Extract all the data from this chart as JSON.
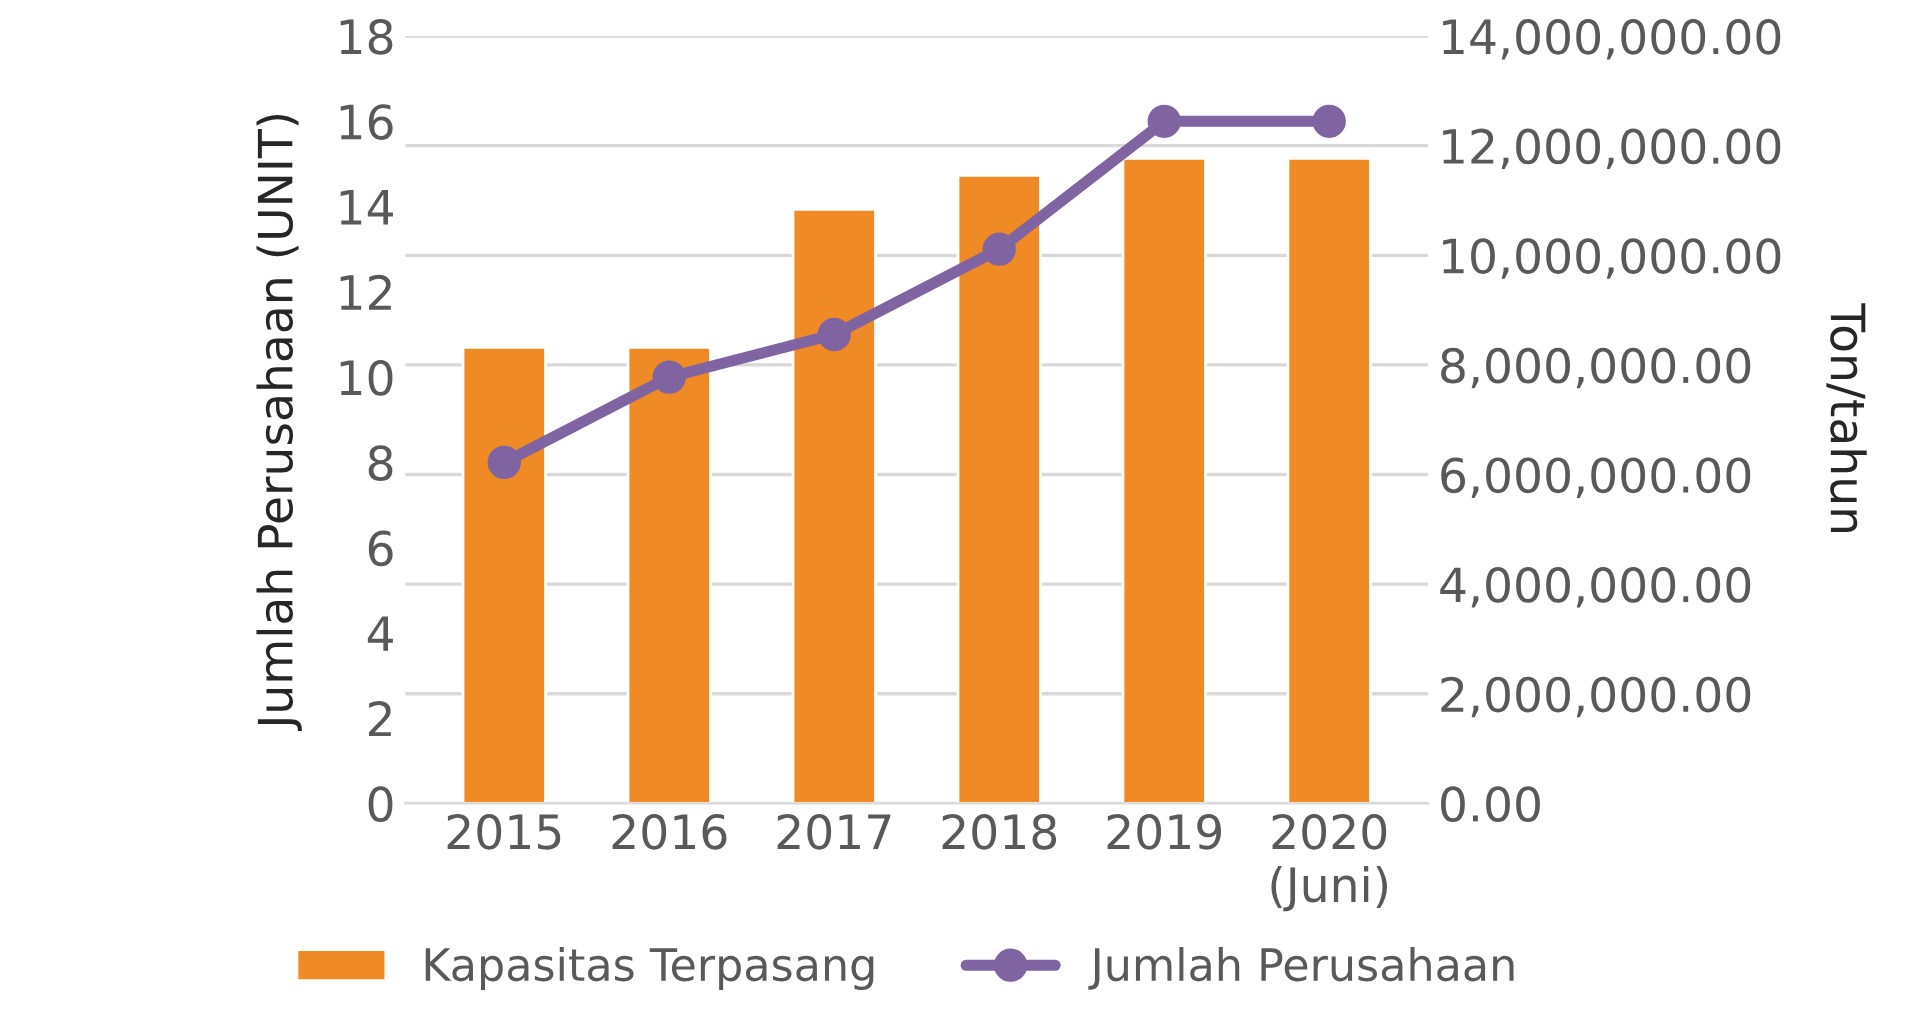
{
  "chart_data": {
    "type": "bar",
    "categories": [
      "2015",
      "2016",
      "2017",
      "2018",
      "2019",
      "2020\n(Juni)"
    ],
    "series": [
      {
        "name": "Kapasitas Terpasang",
        "axis": "y2",
        "color": "#f08a24",
        "values": [
          8320000,
          8320000,
          10840000,
          11460000,
          11770000,
          11770000
        ]
      },
      {
        "name": "Jumlah Perusahaan",
        "type": "line",
        "axis": "y",
        "color": "#8064a2",
        "marker": "circle",
        "values": [
          8,
          10,
          11,
          13,
          16,
          16
        ]
      }
    ],
    "ylabel": "Jumlah Perusahaan (UNIT)",
    "y2label": "Ton/tahun",
    "ylim": [
      0,
      18
    ],
    "yticks": [
      0,
      2,
      4,
      6,
      8,
      10,
      12,
      14,
      16,
      18
    ],
    "y2lim": [
      0,
      14000000
    ],
    "y2ticks": [
      {
        "value": 0,
        "label": "0.00"
      },
      {
        "value": 2000000,
        "label": "2,000,000.00"
      },
      {
        "value": 4000000,
        "label": "4,000,000.00"
      },
      {
        "value": 6000000,
        "label": "6,000,000.00"
      },
      {
        "value": 8000000,
        "label": "8,000,000.00"
      },
      {
        "value": 10000000,
        "label": "10,000,000.00"
      },
      {
        "value": 12000000,
        "label": "12,000,000.00"
      },
      {
        "value": 14000000,
        "label": "14,000,000.00"
      }
    ],
    "grid": "y",
    "legend": "bottom"
  }
}
